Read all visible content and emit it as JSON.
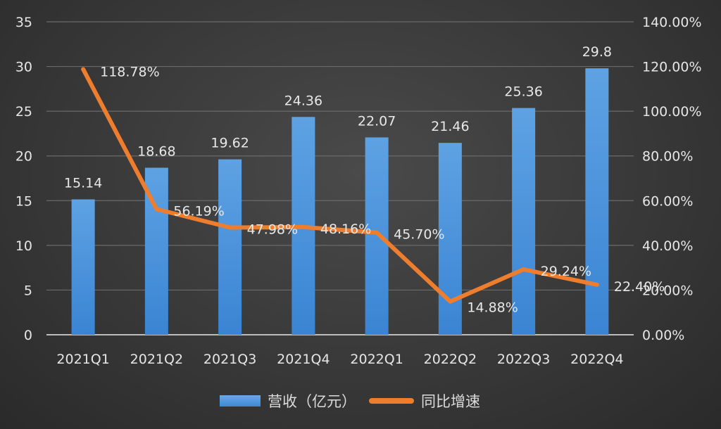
{
  "chart_data": {
    "type": "bar+line",
    "title": "",
    "categories": [
      "2021Q1",
      "2021Q2",
      "2021Q3",
      "2021Q4",
      "2022Q1",
      "2022Q2",
      "2022Q3",
      "2022Q4"
    ],
    "series": [
      {
        "name": "营收（亿元）",
        "type": "bar",
        "axis": "left",
        "color": "#4a90d9",
        "values": [
          15.14,
          18.68,
          19.62,
          24.36,
          22.07,
          21.46,
          25.36,
          29.8
        ],
        "labels": [
          "15.14",
          "18.68",
          "19.62",
          "24.36",
          "22.07",
          "21.46",
          "25.36",
          "29.8"
        ]
      },
      {
        "name": "同比增速",
        "type": "line",
        "axis": "right",
        "color": "#ee7d2e",
        "values": [
          118.78,
          56.19,
          47.98,
          48.16,
          45.7,
          14.88,
          29.24,
          22.4
        ],
        "labels": [
          "118.78%",
          "56.19%",
          "47.98%",
          "48.16%",
          "45.70%",
          "14.88%",
          "29.24%",
          "22.40%"
        ]
      }
    ],
    "left_axis": {
      "ylim": [
        0,
        35
      ],
      "ticks": [
        "0",
        "5",
        "10",
        "15",
        "20",
        "25",
        "30",
        "35"
      ]
    },
    "right_axis": {
      "ylim": [
        0,
        140
      ],
      "ticks": [
        "0.00%",
        "20.00%",
        "40.00%",
        "60.00%",
        "80.00%",
        "100.00%",
        "120.00%",
        "140.00%"
      ]
    },
    "grid": true,
    "legend_position": "bottom"
  },
  "legend": {
    "bar_label": "营收（亿元）",
    "line_label": "同比增速"
  }
}
